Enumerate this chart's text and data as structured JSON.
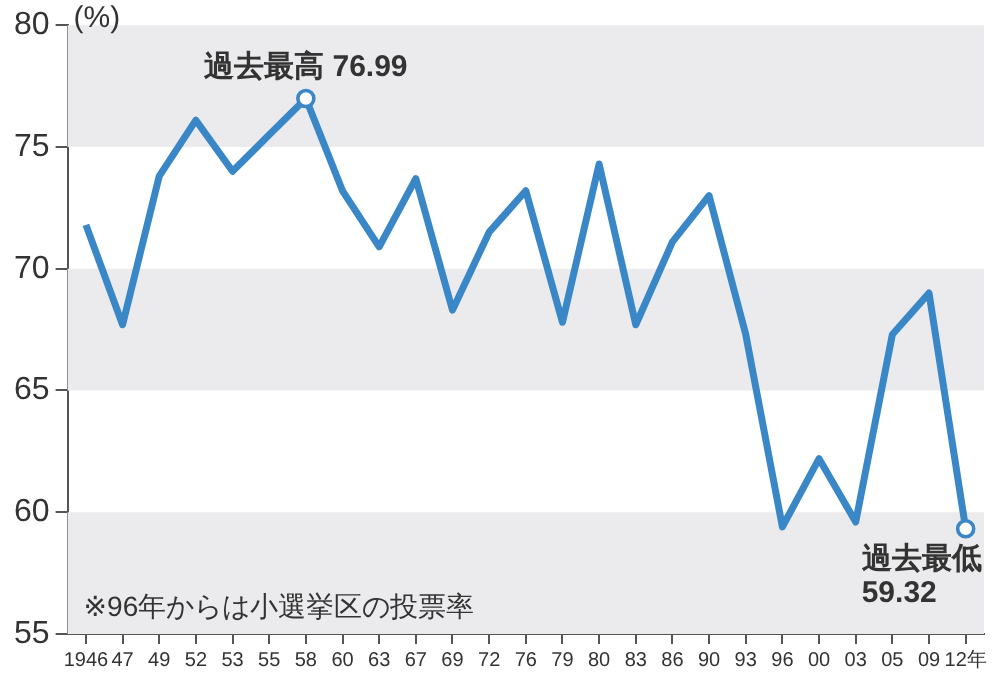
{
  "chart_data": {
    "type": "line",
    "ylabel": "(%)",
    "categories": [
      "1946",
      "47",
      "49",
      "52",
      "53",
      "55",
      "58",
      "60",
      "63",
      "67",
      "69",
      "72",
      "76",
      "79",
      "80",
      "83",
      "86",
      "90",
      "93",
      "96",
      "00",
      "03",
      "05",
      "09",
      "12年"
    ],
    "series": [
      {
        "color": "#3a87c8",
        "values": [
          71.8,
          67.7,
          73.8,
          76.1,
          74.0,
          75.5,
          76.99,
          73.2,
          70.9,
          73.7,
          68.3,
          71.5,
          73.2,
          67.8,
          74.3,
          67.7,
          71.1,
          73.0,
          67.3,
          59.4,
          62.2,
          59.6,
          67.3,
          69.0,
          59.32
        ]
      }
    ],
    "ylim": [
      55,
      80
    ],
    "yticks": [
      55,
      60,
      65,
      70,
      75,
      80
    ],
    "grid": false,
    "legend": false,
    "marker": "none",
    "line_style": "solid",
    "bands": [
      {
        "axis": "y",
        "from": 75,
        "to": 80,
        "color": "#ebebed"
      },
      {
        "axis": "y",
        "from": 65,
        "to": 70,
        "color": "#ebebed"
      },
      {
        "axis": "y",
        "from": 55,
        "to": 60,
        "color": "#ebebed"
      }
    ],
    "annotations": [
      {
        "text": "過去最高 76.99",
        "x": "58",
        "y": 76.99
      },
      {
        "text": "過去最低 59.32",
        "x": "12年",
        "y": 59.32
      },
      "※96年からは小選挙区の投票率"
    ]
  }
}
